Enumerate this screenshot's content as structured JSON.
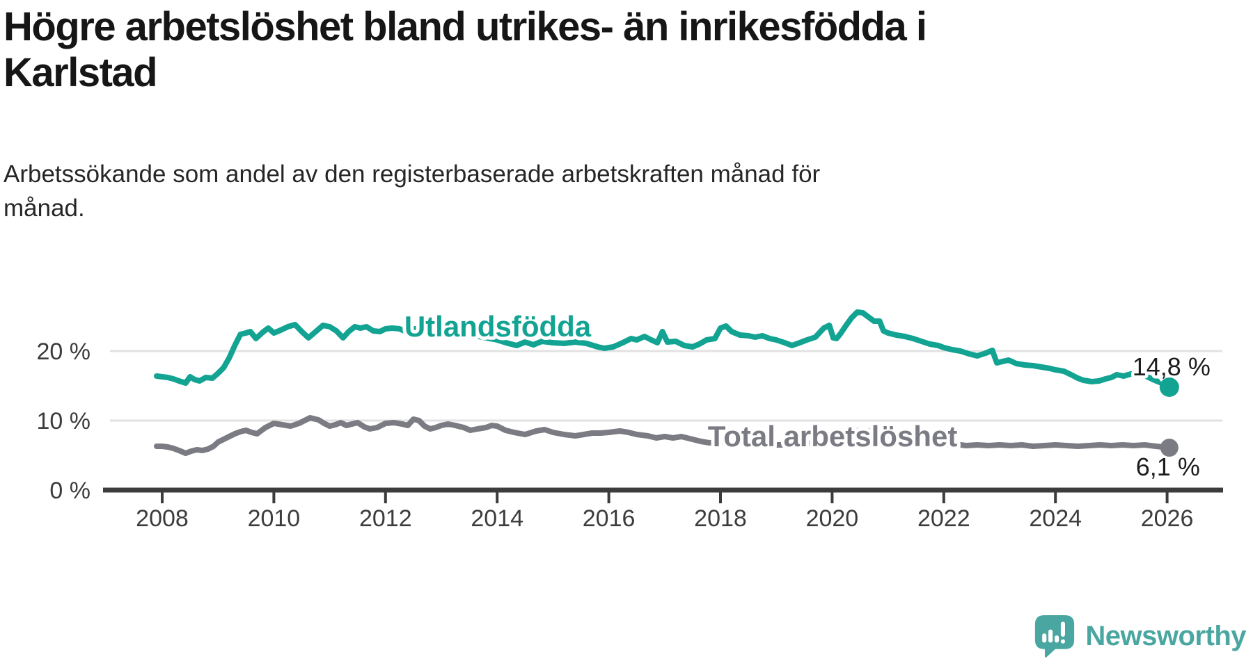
{
  "header": {
    "title": "Högre arbetslöshet bland utrikes- än inrikesfödda i Karlstad",
    "title_line1": "Högre arbetslöshet bland utrikes- än inrikesfödda i",
    "title_line2": "Karlstad",
    "subtitle": "Arbetssökande som andel av den registerbaserade arbetskraften månad för månad.",
    "subtitle_line1": "Arbetssökande som andel av den registerbaserade arbetskraften månad för",
    "subtitle_line2": "månad."
  },
  "footer": {
    "brand": "Newsworthy"
  },
  "colors": {
    "teal": "#12a392",
    "gray": "#7b7b83",
    "axis": "#3c3c3c",
    "grid": "#e2e2e2",
    "value_label": "#1c1c1c",
    "logo": "#4aa6a0",
    "background": "#ffffff"
  },
  "chart_data": {
    "type": "line",
    "title": "Högre arbetslöshet bland utrikes- än inrikesfödda i Karlstad",
    "subtitle": "Arbetssökande som andel av den registerbaserade arbetskraften månad för månad.",
    "grid": "horizontal-only",
    "legend": "inline-series-labels",
    "x_axis": {
      "unit": "year",
      "range": [
        2007.9,
        2026.2
      ],
      "ticks": [
        2008,
        2010,
        2012,
        2014,
        2016,
        2018,
        2020,
        2022,
        2024,
        2026
      ]
    },
    "y_axis": {
      "unit": "percent",
      "range": [
        0,
        26
      ],
      "ticks": [
        {
          "value": 0,
          "label": "0 %"
        },
        {
          "value": 10,
          "label": "10 %"
        },
        {
          "value": 20,
          "label": "20 %"
        }
      ]
    },
    "series": [
      {
        "key": "utlandsfodda",
        "name": "Utlandsfödda",
        "color": "#12a392",
        "end_label": "14,8 %",
        "end_value": 14.8,
        "points": [
          [
            2007.9,
            16.4
          ],
          [
            2008,
            16.3
          ],
          [
            2008.1,
            16.2
          ],
          [
            2008.2,
            16
          ],
          [
            2008.3,
            15.7
          ],
          [
            2008.42,
            15.4
          ],
          [
            2008.5,
            16.3
          ],
          [
            2008.58,
            15.9
          ],
          [
            2008.67,
            15.7
          ],
          [
            2008.78,
            16.2
          ],
          [
            2008.9,
            16.1
          ],
          [
            2009,
            16.8
          ],
          [
            2009.1,
            17.6
          ],
          [
            2009.2,
            19
          ],
          [
            2009.3,
            20.8
          ],
          [
            2009.4,
            22.4
          ],
          [
            2009.5,
            22.6
          ],
          [
            2009.58,
            22.8
          ],
          [
            2009.68,
            21.8
          ],
          [
            2009.8,
            22.7
          ],
          [
            2009.9,
            23.3
          ],
          [
            2010,
            22.6
          ],
          [
            2010.12,
            23
          ],
          [
            2010.25,
            23.5
          ],
          [
            2010.38,
            23.8
          ],
          [
            2010.5,
            22.8
          ],
          [
            2010.62,
            21.9
          ],
          [
            2010.75,
            22.8
          ],
          [
            2010.88,
            23.7
          ],
          [
            2011,
            23.5
          ],
          [
            2011.12,
            22.9
          ],
          [
            2011.24,
            21.9
          ],
          [
            2011.34,
            22.8
          ],
          [
            2011.45,
            23.5
          ],
          [
            2011.55,
            23.3
          ],
          [
            2011.66,
            23.5
          ],
          [
            2011.78,
            22.9
          ],
          [
            2011.9,
            22.8
          ],
          [
            2012,
            23.2
          ],
          [
            2012.12,
            23.3
          ],
          [
            2012.25,
            23.2
          ],
          [
            2012.36,
            22.8
          ],
          [
            2012.5,
            23.2
          ],
          [
            2012.62,
            23.2
          ],
          [
            2012.73,
            23
          ],
          [
            2012.86,
            23.3
          ],
          [
            2013,
            23.1
          ],
          [
            2013.2,
            22.8
          ],
          [
            2013.4,
            22.4
          ],
          [
            2013.6,
            22.2
          ],
          [
            2013.8,
            21.9
          ],
          [
            2014,
            21.6
          ],
          [
            2014.2,
            21.1
          ],
          [
            2014.35,
            20.8
          ],
          [
            2014.5,
            21.3
          ],
          [
            2014.65,
            20.9
          ],
          [
            2014.8,
            21.4
          ],
          [
            2015,
            21.2
          ],
          [
            2015.2,
            21.1
          ],
          [
            2015.4,
            21.3
          ],
          [
            2015.6,
            21.1
          ],
          [
            2015.8,
            20.6
          ],
          [
            2015.92,
            20.4
          ],
          [
            2016.08,
            20.6
          ],
          [
            2016.25,
            21.2
          ],
          [
            2016.4,
            21.8
          ],
          [
            2016.5,
            21.6
          ],
          [
            2016.64,
            22.1
          ],
          [
            2016.76,
            21.6
          ],
          [
            2016.87,
            21.2
          ],
          [
            2016.96,
            22.8
          ],
          [
            2017.05,
            21.3
          ],
          [
            2017.2,
            21.4
          ],
          [
            2017.35,
            20.8
          ],
          [
            2017.5,
            20.6
          ],
          [
            2017.62,
            21
          ],
          [
            2017.75,
            21.6
          ],
          [
            2017.9,
            21.8
          ],
          [
            2018,
            23.3
          ],
          [
            2018.1,
            23.6
          ],
          [
            2018.2,
            22.8
          ],
          [
            2018.35,
            22.3
          ],
          [
            2018.5,
            22.2
          ],
          [
            2018.62,
            22
          ],
          [
            2018.75,
            22.2
          ],
          [
            2018.88,
            21.8
          ],
          [
            2019,
            21.6
          ],
          [
            2019.15,
            21.2
          ],
          [
            2019.28,
            20.8
          ],
          [
            2019.42,
            21.2
          ],
          [
            2019.55,
            21.6
          ],
          [
            2019.7,
            22
          ],
          [
            2019.85,
            23.3
          ],
          [
            2019.95,
            23.7
          ],
          [
            2020.02,
            21.9
          ],
          [
            2020.08,
            21.8
          ],
          [
            2020.15,
            22.5
          ],
          [
            2020.25,
            23.7
          ],
          [
            2020.35,
            24.8
          ],
          [
            2020.45,
            25.6
          ],
          [
            2020.55,
            25.5
          ],
          [
            2020.65,
            24.9
          ],
          [
            2020.75,
            24.3
          ],
          [
            2020.85,
            24.3
          ],
          [
            2020.92,
            22.9
          ],
          [
            2021,
            22.6
          ],
          [
            2021.15,
            22.3
          ],
          [
            2021.3,
            22.1
          ],
          [
            2021.45,
            21.8
          ],
          [
            2021.6,
            21.4
          ],
          [
            2021.75,
            21
          ],
          [
            2021.9,
            20.8
          ],
          [
            2022,
            20.5
          ],
          [
            2022.15,
            20.2
          ],
          [
            2022.3,
            20
          ],
          [
            2022.45,
            19.6
          ],
          [
            2022.6,
            19.3
          ],
          [
            2022.75,
            19.7
          ],
          [
            2022.87,
            20.1
          ],
          [
            2022.95,
            18.3
          ],
          [
            2023.05,
            18.5
          ],
          [
            2023.16,
            18.7
          ],
          [
            2023.3,
            18.2
          ],
          [
            2023.45,
            18
          ],
          [
            2023.6,
            17.9
          ],
          [
            2023.75,
            17.7
          ],
          [
            2023.9,
            17.5
          ],
          [
            2024,
            17.3
          ],
          [
            2024.15,
            17.1
          ],
          [
            2024.28,
            16.6
          ],
          [
            2024.4,
            16.1
          ],
          [
            2024.5,
            15.8
          ],
          [
            2024.65,
            15.6
          ],
          [
            2024.78,
            15.7
          ],
          [
            2024.9,
            16
          ],
          [
            2025,
            16.2
          ],
          [
            2025.1,
            16.6
          ],
          [
            2025.22,
            16.4
          ],
          [
            2025.35,
            16.7
          ],
          [
            2025.5,
            16.6
          ],
          [
            2025.62,
            16.4
          ],
          [
            2025.75,
            15.9
          ],
          [
            2025.9,
            15.4
          ],
          [
            2026.04,
            14.8
          ]
        ]
      },
      {
        "key": "total-arbetsloshet",
        "name": "Total arbetslöshet",
        "color": "#7b7b83",
        "end_label": "6,1 %",
        "end_value": 6.1,
        "points": [
          [
            2007.9,
            6.3
          ],
          [
            2008,
            6.3
          ],
          [
            2008.1,
            6.2
          ],
          [
            2008.2,
            6
          ],
          [
            2008.3,
            5.7
          ],
          [
            2008.42,
            5.3
          ],
          [
            2008.52,
            5.6
          ],
          [
            2008.62,
            5.8
          ],
          [
            2008.72,
            5.7
          ],
          [
            2008.82,
            5.9
          ],
          [
            2008.92,
            6.3
          ],
          [
            2009,
            6.9
          ],
          [
            2009.15,
            7.5
          ],
          [
            2009.3,
            8.1
          ],
          [
            2009.4,
            8.4
          ],
          [
            2009.5,
            8.6
          ],
          [
            2009.6,
            8.3
          ],
          [
            2009.7,
            8.1
          ],
          [
            2009.85,
            9
          ],
          [
            2010,
            9.6
          ],
          [
            2010.15,
            9.4
          ],
          [
            2010.3,
            9.2
          ],
          [
            2010.45,
            9.6
          ],
          [
            2010.55,
            10
          ],
          [
            2010.65,
            10.4
          ],
          [
            2010.8,
            10.1
          ],
          [
            2010.9,
            9.6
          ],
          [
            2011,
            9.2
          ],
          [
            2011.1,
            9.4
          ],
          [
            2011.2,
            9.7
          ],
          [
            2011.3,
            9.3
          ],
          [
            2011.4,
            9.5
          ],
          [
            2011.5,
            9.7
          ],
          [
            2011.62,
            9.1
          ],
          [
            2011.72,
            8.8
          ],
          [
            2011.85,
            9
          ],
          [
            2012,
            9.6
          ],
          [
            2012.15,
            9.7
          ],
          [
            2012.3,
            9.5
          ],
          [
            2012.4,
            9.3
          ],
          [
            2012.5,
            10.2
          ],
          [
            2012.6,
            10
          ],
          [
            2012.7,
            9.2
          ],
          [
            2012.8,
            8.8
          ],
          [
            2012.9,
            9
          ],
          [
            2013,
            9.3
          ],
          [
            2013.12,
            9.5
          ],
          [
            2013.25,
            9.3
          ],
          [
            2013.4,
            9
          ],
          [
            2013.52,
            8.6
          ],
          [
            2013.65,
            8.8
          ],
          [
            2013.8,
            9
          ],
          [
            2013.9,
            9.3
          ],
          [
            2014,
            9.2
          ],
          [
            2014.15,
            8.6
          ],
          [
            2014.3,
            8.3
          ],
          [
            2014.5,
            8
          ],
          [
            2014.7,
            8.5
          ],
          [
            2014.85,
            8.7
          ],
          [
            2015,
            8.3
          ],
          [
            2015.2,
            8
          ],
          [
            2015.4,
            7.8
          ],
          [
            2015.55,
            8
          ],
          [
            2015.7,
            8.2
          ],
          [
            2015.85,
            8.2
          ],
          [
            2016,
            8.3
          ],
          [
            2016.2,
            8.5
          ],
          [
            2016.35,
            8.3
          ],
          [
            2016.5,
            8
          ],
          [
            2016.7,
            7.8
          ],
          [
            2016.85,
            7.5
          ],
          [
            2017,
            7.7
          ],
          [
            2017.15,
            7.5
          ],
          [
            2017.3,
            7.7
          ],
          [
            2017.5,
            7.3
          ],
          [
            2017.65,
            7
          ],
          [
            2017.8,
            6.8
          ],
          [
            2018,
            6.9
          ],
          [
            2018.3,
            6.7
          ],
          [
            2018.6,
            6.6
          ],
          [
            2018.9,
            6.5
          ],
          [
            2019.2,
            6.5
          ],
          [
            2019.5,
            6.6
          ],
          [
            2019.8,
            6.9
          ],
          [
            2020,
            7.1
          ],
          [
            2020.2,
            8
          ],
          [
            2020.4,
            8.5
          ],
          [
            2020.6,
            8.6
          ],
          [
            2020.8,
            8.3
          ],
          [
            2021,
            7.9
          ],
          [
            2021.2,
            7.5
          ],
          [
            2021.4,
            7.1
          ],
          [
            2021.6,
            6.8
          ],
          [
            2021.8,
            6.6
          ],
          [
            2022,
            6.5
          ],
          [
            2022.2,
            6.6
          ],
          [
            2022.4,
            6.4
          ],
          [
            2022.6,
            6.5
          ],
          [
            2022.8,
            6.4
          ],
          [
            2023,
            6.5
          ],
          [
            2023.2,
            6.4
          ],
          [
            2023.4,
            6.5
          ],
          [
            2023.6,
            6.3
          ],
          [
            2023.8,
            6.4
          ],
          [
            2024,
            6.5
          ],
          [
            2024.2,
            6.4
          ],
          [
            2024.4,
            6.3
          ],
          [
            2024.6,
            6.4
          ],
          [
            2024.8,
            6.5
          ],
          [
            2025,
            6.4
          ],
          [
            2025.2,
            6.5
          ],
          [
            2025.4,
            6.4
          ],
          [
            2025.6,
            6.5
          ],
          [
            2025.8,
            6.3
          ],
          [
            2026.04,
            6.1
          ]
        ]
      }
    ]
  }
}
